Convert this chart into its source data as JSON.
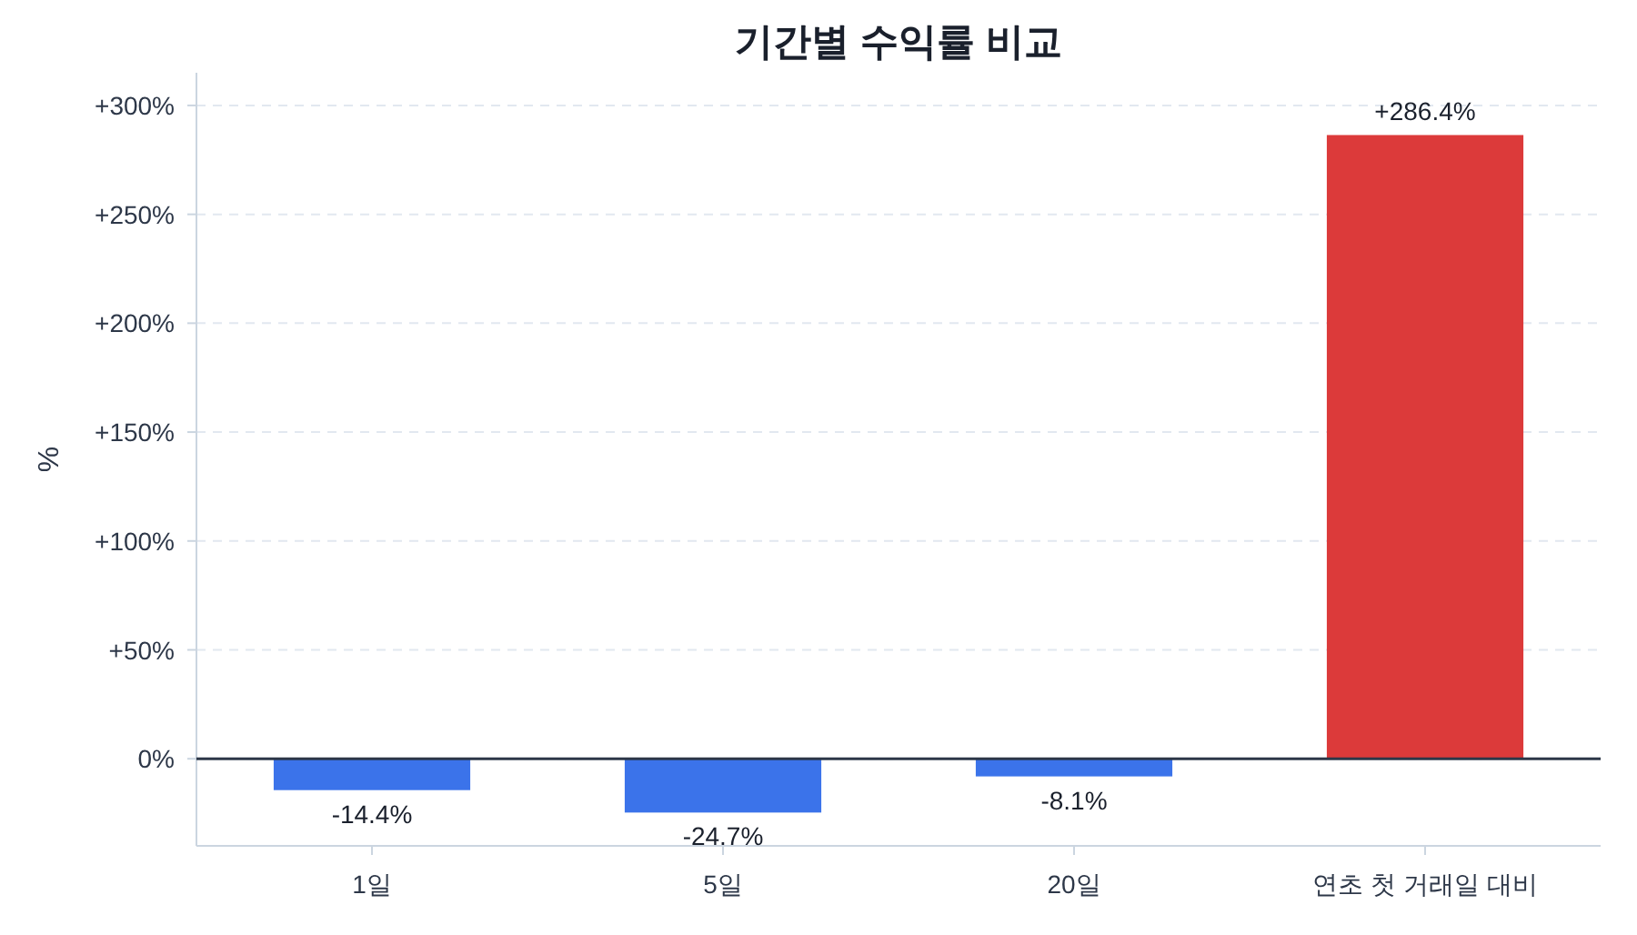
{
  "chart_data": {
    "type": "bar",
    "title": "기간별 수익률 비교",
    "ylabel": "%",
    "categories": [
      "1일",
      "5일",
      "20일",
      "연초 첫 거래일 대비"
    ],
    "values": [
      -14.4,
      -24.7,
      -8.1,
      286.4
    ],
    "colors": [
      "#3b73ea",
      "#3b73ea",
      "#3b73ea",
      "#dc3a3a"
    ],
    "value_labels": [
      "-14.4%",
      "-24.7%",
      "-8.1%",
      "+286.4%"
    ],
    "ylim": [
      -40,
      315
    ],
    "yticks": [
      {
        "value": 0,
        "label": "0%"
      },
      {
        "value": 50,
        "label": "+50%"
      },
      {
        "value": 100,
        "label": "+100%"
      },
      {
        "value": 150,
        "label": "+150%"
      },
      {
        "value": 200,
        "label": "+200%"
      },
      {
        "value": 250,
        "label": "+250%"
      },
      {
        "value": 300,
        "label": "+300%"
      }
    ],
    "ref_lines": [
      {
        "axis": "y",
        "value": 0,
        "color": "#2d3748"
      }
    ],
    "grid": "y"
  }
}
